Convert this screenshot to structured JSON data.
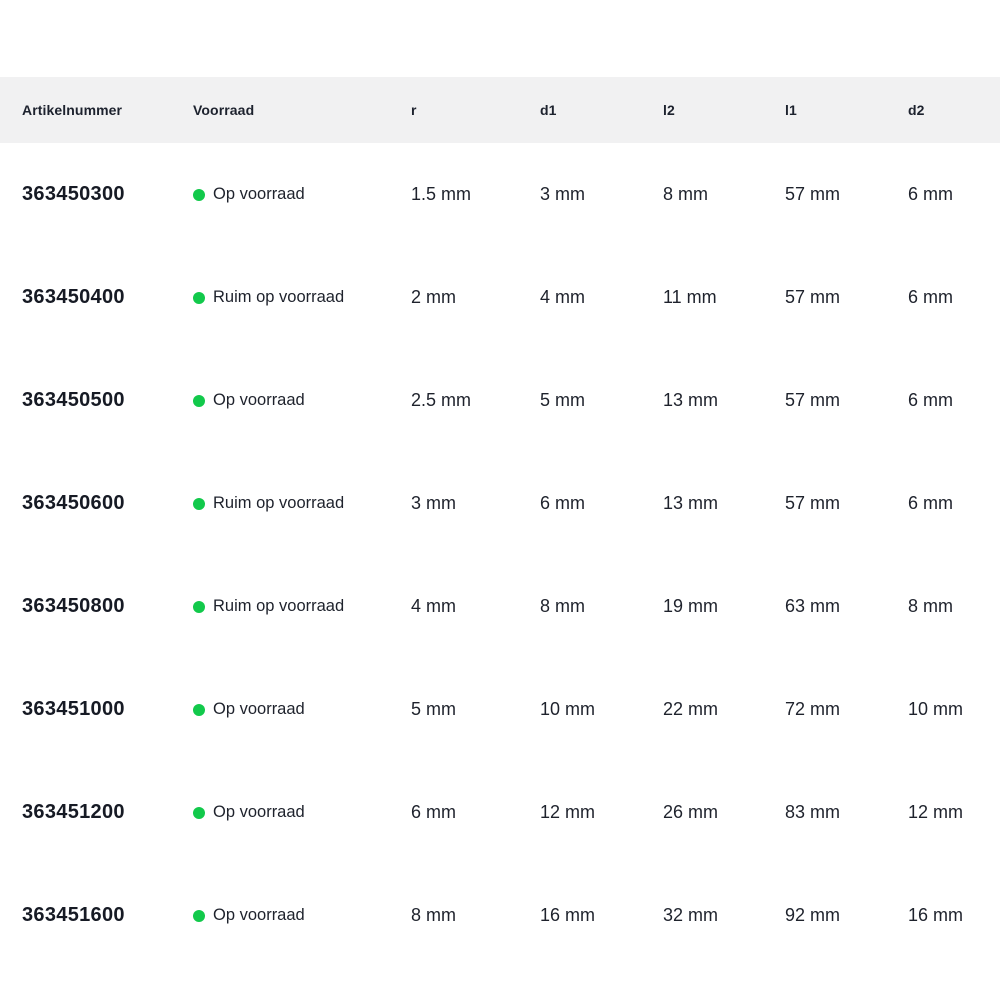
{
  "colors": {
    "in_stock_green": "#12c94b",
    "header_background": "#f1f1f2",
    "text_dark": "#1d222e",
    "page_background": "#ffffff"
  },
  "table": {
    "columns": [
      {
        "key": "artikelnummer",
        "label": "Artikelnummer"
      },
      {
        "key": "voorraad",
        "label": "Voorraad"
      },
      {
        "key": "r",
        "label": "r"
      },
      {
        "key": "d1",
        "label": "d1"
      },
      {
        "key": "l2",
        "label": "l2"
      },
      {
        "key": "l1",
        "label": "l1"
      },
      {
        "key": "d2",
        "label": "d2"
      }
    ],
    "stock_icon": "green-dot",
    "rows": [
      {
        "artikelnummer": "363450300",
        "voorraad": "Op voorraad",
        "r": "1.5 mm",
        "d1": "3 mm",
        "l2": "8 mm",
        "l1": "57 mm",
        "d2": "6 mm"
      },
      {
        "artikelnummer": "363450400",
        "voorraad": "Ruim op voorraad",
        "r": "2 mm",
        "d1": "4 mm",
        "l2": "11 mm",
        "l1": "57 mm",
        "d2": "6 mm"
      },
      {
        "artikelnummer": "363450500",
        "voorraad": "Op voorraad",
        "r": "2.5 mm",
        "d1": "5 mm",
        "l2": "13 mm",
        "l1": "57 mm",
        "d2": "6 mm"
      },
      {
        "artikelnummer": "363450600",
        "voorraad": "Ruim op voorraad",
        "r": "3 mm",
        "d1": "6 mm",
        "l2": "13 mm",
        "l1": "57 mm",
        "d2": "6 mm"
      },
      {
        "artikelnummer": "363450800",
        "voorraad": "Ruim op voorraad",
        "r": "4 mm",
        "d1": "8 mm",
        "l2": "19 mm",
        "l1": "63 mm",
        "d2": "8 mm"
      },
      {
        "artikelnummer": "363451000",
        "voorraad": "Op voorraad",
        "r": "5 mm",
        "d1": "10 mm",
        "l2": "22 mm",
        "l1": "72 mm",
        "d2": "10 mm"
      },
      {
        "artikelnummer": "363451200",
        "voorraad": "Op voorraad",
        "r": "6 mm",
        "d1": "12 mm",
        "l2": "26 mm",
        "l1": "83 mm",
        "d2": "12 mm"
      },
      {
        "artikelnummer": "363451600",
        "voorraad": "Op voorraad",
        "r": "8 mm",
        "d1": "16 mm",
        "l2": "32 mm",
        "l1": "92 mm",
        "d2": "16 mm"
      }
    ]
  }
}
